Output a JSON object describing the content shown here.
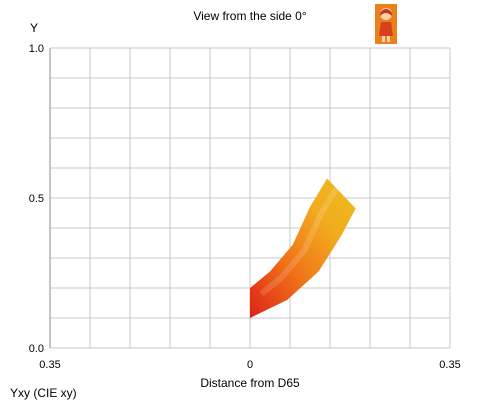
{
  "chart_data": {
    "type": "area",
    "title": "View from the side 0°",
    "xlabel": "Distance from D65",
    "ylabel": "Y",
    "corner_label": "Yxy (CIE xy)",
    "xlim": [
      -0.35,
      0.35
    ],
    "ylim": [
      0.0,
      1.0
    ],
    "x_tick_labels": [
      "0.35",
      "0",
      "0.35"
    ],
    "x_tick_values": [
      -0.35,
      0,
      0.35
    ],
    "y_tick_labels": [
      "0.0",
      "0.5",
      "1.0"
    ],
    "y_tick_values": [
      0.0,
      0.5,
      1.0
    ],
    "grid": true,
    "legend": "none",
    "series": [
      {
        "outline": [
          {
            "x": 0.0,
            "y": 0.2
          },
          {
            "x": 0.035,
            "y": 0.255
          },
          {
            "x": 0.075,
            "y": 0.345
          },
          {
            "x": 0.105,
            "y": 0.47
          },
          {
            "x": 0.135,
            "y": 0.565
          },
          {
            "x": 0.165,
            "y": 0.505
          },
          {
            "x": 0.185,
            "y": 0.465
          },
          {
            "x": 0.16,
            "y": 0.375
          },
          {
            "x": 0.12,
            "y": 0.255
          },
          {
            "x": 0.065,
            "y": 0.16
          },
          {
            "x": 0.0,
            "y": 0.1
          }
        ],
        "gradient": [
          "#dd1a10",
          "#ef6a10",
          "#f2a818",
          "#e8bc15"
        ]
      }
    ],
    "colors": {
      "grid": "#c8c8c8",
      "frame": "#8a8a8a"
    }
  },
  "icons": {
    "badge": "character-figure-icon"
  }
}
